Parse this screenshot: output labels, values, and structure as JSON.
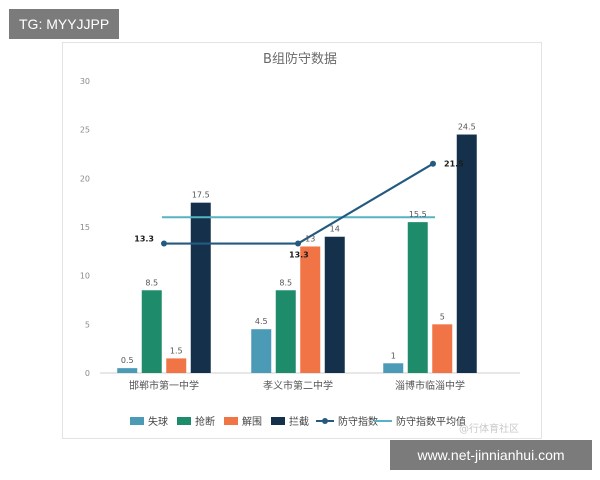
{
  "watermarks": {
    "top_tag": "TG: MYYJJPP",
    "bottom_tag": "www.net-jinnianhui.com",
    "weibo": "@行体育社区"
  },
  "chart_data": {
    "type": "bar",
    "title": "B组防守数据",
    "categories": [
      "邯郸市第一中学",
      "孝义市第二中学",
      "淄博市临淄中学"
    ],
    "ylim": [
      0,
      30
    ],
    "yticks": [
      0,
      5,
      10,
      15,
      20,
      25,
      30
    ],
    "grid": false,
    "legend_position": "bottom",
    "series": [
      {
        "name": "失球",
        "values": [
          0.5,
          4.5,
          1
        ],
        "color": "#4b9bb7"
      },
      {
        "name": "抢断",
        "values": [
          8.5,
          8.5,
          15.5
        ],
        "color": "#1e8c6a"
      },
      {
        "name": "解围",
        "values": [
          1.5,
          13,
          5
        ],
        "color": "#f07446"
      },
      {
        "name": "拦截",
        "values": [
          17.5,
          14,
          24.5
        ],
        "color": "#14304b"
      }
    ],
    "line_series": [
      {
        "name": "防守指数",
        "values": [
          13.3,
          13.3,
          21.5
        ],
        "color": "#245a80"
      },
      {
        "name": "防守指数平均值",
        "value": 16,
        "color": "#56b3c2"
      }
    ]
  }
}
